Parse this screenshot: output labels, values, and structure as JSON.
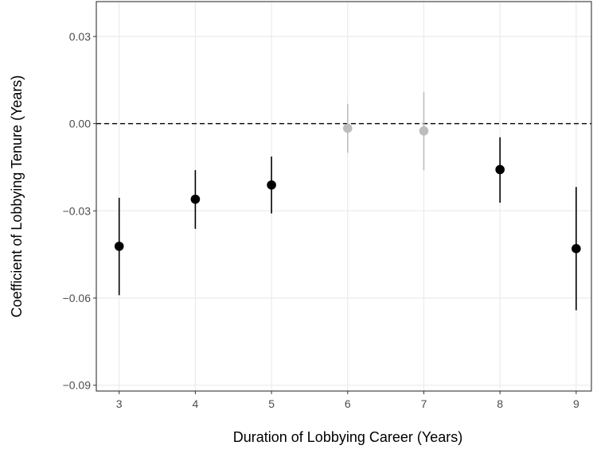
{
  "chart_data": {
    "type": "scatter",
    "subtype": "point-range (coefficient estimates with confidence intervals)",
    "xlabel": "Duration of Lobbying Career (Years)",
    "ylabel": "Coefficient of Lobbying Tenure (Years)",
    "x_ticks": [
      3,
      4,
      5,
      6,
      7,
      8,
      9
    ],
    "x_tick_labels": [
      "3",
      "4",
      "5",
      "6",
      "7",
      "8",
      "9"
    ],
    "y_ticks": [
      -0.09,
      -0.06,
      -0.03,
      0.0,
      0.03
    ],
    "y_tick_labels": [
      "−0.09",
      "−0.06",
      "−0.03",
      "0.00",
      "0.03"
    ],
    "xlim": [
      2.7,
      9.2
    ],
    "ylim": [
      -0.092,
      0.042
    ],
    "reference_line": {
      "y": 0,
      "style": "dashed"
    },
    "grid": true,
    "colors": {
      "significant": "#000000",
      "not_significant": "#bdbdbd",
      "grid": "#ebebeb",
      "panel_border": "#333333"
    },
    "points": [
      {
        "x": 3,
        "estimate": -0.0422,
        "lower": -0.059,
        "upper": -0.0255,
        "significant": true
      },
      {
        "x": 4,
        "estimate": -0.026,
        "lower": -0.0362,
        "upper": -0.016,
        "significant": true
      },
      {
        "x": 5,
        "estimate": -0.0211,
        "lower": -0.0309,
        "upper": -0.0113,
        "significant": true
      },
      {
        "x": 6,
        "estimate": -0.0016,
        "lower": -0.01,
        "upper": 0.0068,
        "significant": false
      },
      {
        "x": 7,
        "estimate": -0.0025,
        "lower": -0.016,
        "upper": 0.0108,
        "significant": false
      },
      {
        "x": 8,
        "estimate": -0.0158,
        "lower": -0.0272,
        "upper": -0.0047,
        "significant": true
      },
      {
        "x": 9,
        "estimate": -0.043,
        "lower": -0.0642,
        "upper": -0.0218,
        "significant": true
      }
    ]
  }
}
